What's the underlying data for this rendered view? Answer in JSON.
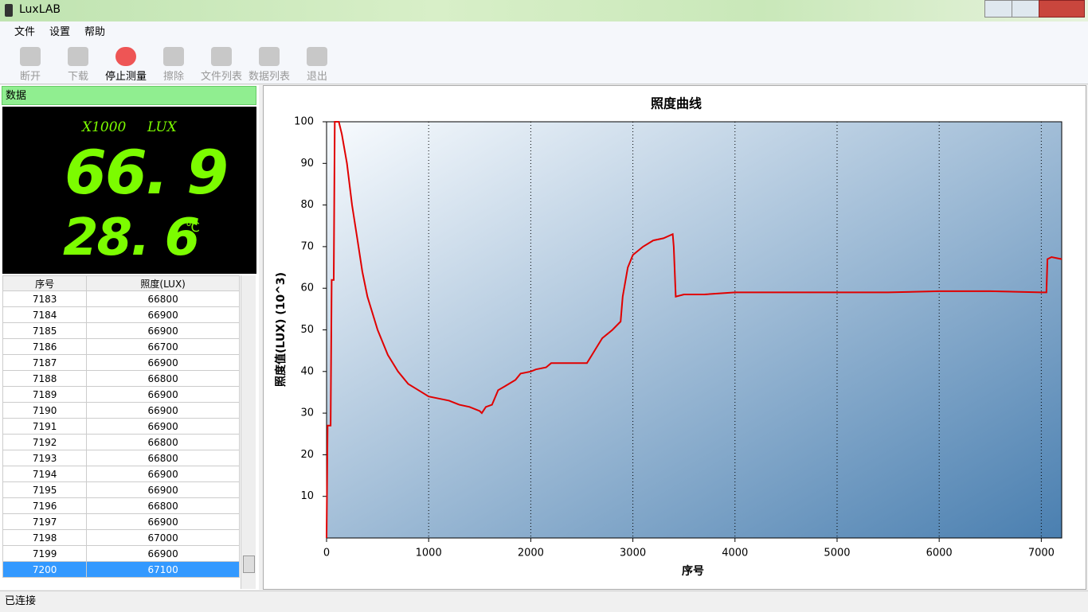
{
  "window": {
    "title": "LuxLAB"
  },
  "menu": [
    "文件",
    "设置",
    "帮助"
  ],
  "toolbar": [
    "断开",
    "下载",
    "停止测量",
    "擦除",
    "文件列表",
    "数据列表",
    "退出"
  ],
  "panel": {
    "title": "数据",
    "multiplier": "X1000",
    "unit": "LUX",
    "reading": "66. 9",
    "temperature": "28. 6",
    "temp_unit": "℃"
  },
  "table": {
    "headers": [
      "序号",
      "照度(LUX)"
    ],
    "rows": [
      [
        "7183",
        "66800"
      ],
      [
        "7184",
        "66900"
      ],
      [
        "7185",
        "66900"
      ],
      [
        "7186",
        "66700"
      ],
      [
        "7187",
        "66900"
      ],
      [
        "7188",
        "66800"
      ],
      [
        "7189",
        "66900"
      ],
      [
        "7190",
        "66900"
      ],
      [
        "7191",
        "66900"
      ],
      [
        "7192",
        "66800"
      ],
      [
        "7193",
        "66800"
      ],
      [
        "7194",
        "66900"
      ],
      [
        "7195",
        "66900"
      ],
      [
        "7196",
        "66800"
      ],
      [
        "7197",
        "66900"
      ],
      [
        "7198",
        "67000"
      ],
      [
        "7199",
        "66900"
      ],
      [
        "7200",
        "67100"
      ]
    ]
  },
  "status": "已连接",
  "chart_data": {
    "type": "line",
    "title": "照度曲线",
    "x_label": "序号",
    "y_label": "照度值(LUX)  (10^3)",
    "x": [
      0,
      10,
      40,
      50,
      70,
      80,
      120,
      150,
      200,
      250,
      300,
      350,
      400,
      500,
      600,
      700,
      800,
      900,
      1000,
      1100,
      1200,
      1300,
      1400,
      1500,
      1520,
      1560,
      1620,
      1680,
      1750,
      1850,
      1900,
      2000,
      2050,
      2150,
      2200,
      2300,
      2400,
      2550,
      2600,
      2650,
      2700,
      2800,
      2880,
      2900,
      2950,
      3000,
      3100,
      3200,
      3300,
      3390,
      3400,
      3420,
      3500,
      3700,
      4000,
      4500,
      5000,
      5500,
      6000,
      6500,
      7000,
      7050,
      7060,
      7100,
      7200
    ],
    "values": [
      0,
      27,
      27,
      62,
      62,
      100,
      100,
      97,
      90,
      80,
      72,
      64,
      58,
      50,
      44,
      40,
      37,
      35.5,
      34,
      33.5,
      33,
      32,
      31.5,
      30.5,
      30,
      31.5,
      32,
      35.5,
      36.5,
      38,
      39.5,
      40,
      40.5,
      41,
      42,
      42,
      42,
      42,
      44,
      46,
      48,
      50,
      52,
      58,
      65,
      68,
      70,
      71.5,
      72,
      73,
      70,
      58,
      58.5,
      58.5,
      59,
      59,
      59,
      59,
      59.3,
      59.3,
      59,
      59,
      67,
      67.5,
      67
    ],
    "color": "#e00000",
    "xlim": [
      0,
      7200
    ],
    "ylim": [
      0,
      100
    ],
    "xticks": [
      0,
      1000,
      2000,
      3000,
      4000,
      5000,
      6000,
      7000
    ],
    "yticks": [
      10,
      20,
      30,
      40,
      50,
      60,
      70,
      80,
      90,
      100
    ],
    "grid": true
  }
}
